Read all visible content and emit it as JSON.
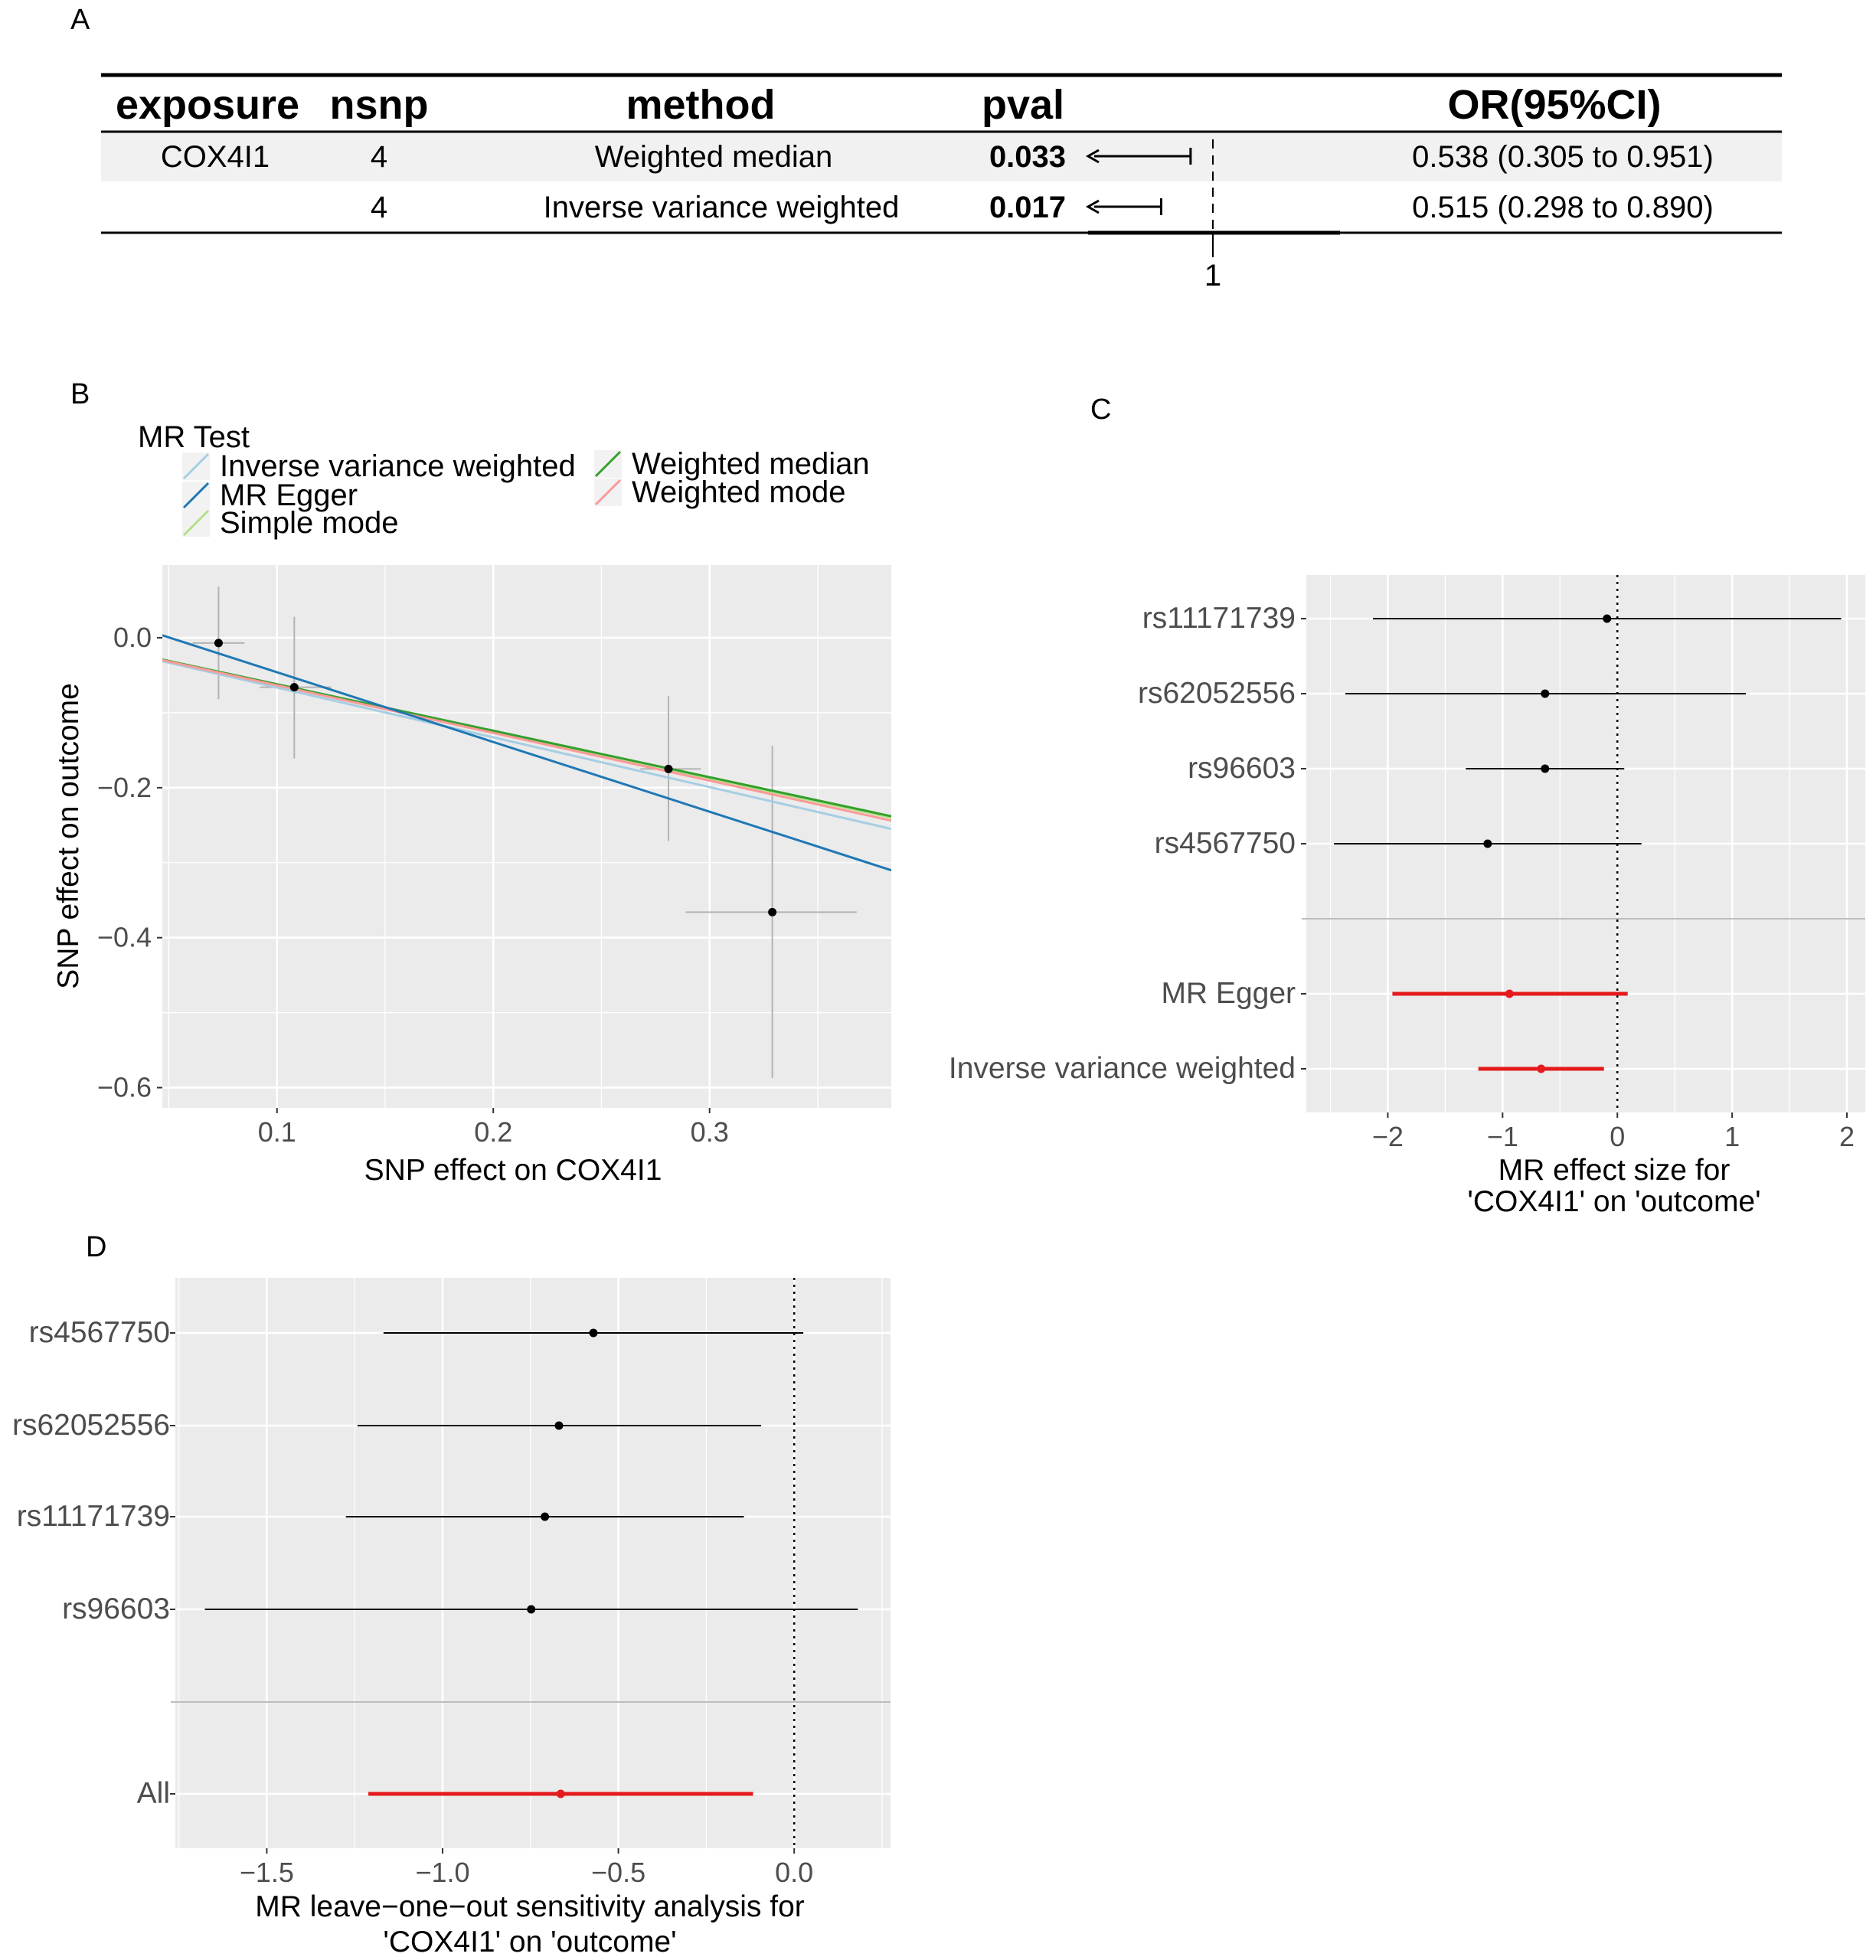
{
  "panels": {
    "a": "A",
    "b": "B",
    "c": "C",
    "d": "D"
  },
  "colors": {
    "panel_bg": "#ebebeb",
    "grid": "#ffffff",
    "point": "#000000",
    "summary": "#e41a1c",
    "errorbar_scatter": "#b3b3b3",
    "table_band": "#f0f1f0"
  },
  "chart_data": [
    {
      "type": "table",
      "panel": "A",
      "columns": [
        "exposure",
        "nsnp",
        "method",
        "pval",
        "OR(95%CI)"
      ],
      "rows": [
        {
          "exposure": "COX4I1",
          "nsnp": "4",
          "method": "Weighted median",
          "pval": "0.033",
          "or_ci": "0.538 (0.305 to 0.951)",
          "or": 0.538,
          "lo": 0.305,
          "hi": 0.951
        },
        {
          "exposure": "",
          "nsnp": "4",
          "method": "Inverse variance weighted",
          "pval": "0.017",
          "or_ci": "0.515 (0.298 to 0.890)",
          "or": 0.515,
          "lo": 0.298,
          "hi": 0.89
        }
      ],
      "reference_line": 1,
      "reference_label": "1"
    },
    {
      "type": "scatter",
      "panel": "B",
      "xlabel": "SNP effect on COX4I1",
      "ylabel": "SNP effect on outcome",
      "xlim": [
        0.047,
        0.384
      ],
      "ylim": [
        -0.627,
        0.097
      ],
      "xticks": [
        0.1,
        0.2,
        0.3
      ],
      "xtick_labels": [
        "0.1",
        "0.2",
        "0.3"
      ],
      "yticks": [
        0.0,
        -0.2,
        -0.4,
        -0.6
      ],
      "ytick_labels": [
        "0.0",
        "−0.2",
        "−0.4",
        "−0.6"
      ],
      "grid": true,
      "legend": {
        "title": "MR Test",
        "placement": "top",
        "entries": [
          {
            "name": "Inverse variance weighted",
            "color": "#a6cee3"
          },
          {
            "name": "MR Egger",
            "color": "#1f78b4"
          },
          {
            "name": "Simple mode",
            "color": "#b2df8a"
          },
          {
            "name": "Weighted median",
            "color": "#33a02c"
          },
          {
            "name": "Weighted mode",
            "color": "#fb9a99"
          }
        ]
      },
      "points": [
        {
          "x": 0.073,
          "y": -0.007,
          "xlo": 0.061,
          "xhi": 0.085,
          "ylo": -0.082,
          "yhi": 0.068
        },
        {
          "x": 0.108,
          "y": -0.066,
          "xlo": 0.092,
          "xhi": 0.125,
          "ylo": -0.161,
          "yhi": 0.028
        },
        {
          "x": 0.281,
          "y": -0.175,
          "xlo": 0.268,
          "xhi": 0.296,
          "ylo": -0.271,
          "yhi": -0.078
        },
        {
          "x": 0.329,
          "y": -0.366,
          "xlo": 0.289,
          "xhi": 0.368,
          "ylo": -0.587,
          "yhi": -0.144
        }
      ],
      "lines": [
        {
          "name": "Inverse variance weighted",
          "intercept": 0,
          "slope": -0.664,
          "color": "#a6cee3"
        },
        {
          "name": "Simple mode",
          "intercept": 0,
          "slope": -0.625,
          "color": "#b2df8a"
        },
        {
          "name": "Weighted median",
          "intercept": 0,
          "slope": -0.62,
          "color": "#33a02c"
        },
        {
          "name": "Weighted mode",
          "intercept": 0,
          "slope": -0.635,
          "color": "#fb9a99"
        },
        {
          "name": "MR Egger",
          "intercept": 0.047,
          "slope": -0.93,
          "color": "#1f78b4"
        }
      ]
    },
    {
      "type": "forest",
      "panel": "C",
      "xlabel": [
        "MR effect size for",
        "'COX4I1' on 'outcome'"
      ],
      "xlim": [
        -2.71,
        2.16
      ],
      "xticks": [
        -2,
        -1,
        0,
        1,
        2
      ],
      "xtick_labels": [
        "−2",
        "−1",
        "0",
        "1",
        "2"
      ],
      "reference_line": 0,
      "rows": [
        {
          "label": "rs11171739",
          "est": -0.09,
          "lo": -2.13,
          "hi": 1.95,
          "summary": false
        },
        {
          "label": "rs62052556",
          "est": -0.63,
          "lo": -2.37,
          "hi": 1.12,
          "summary": false
        },
        {
          "label": "rs96603",
          "est": -0.63,
          "lo": -1.32,
          "hi": 0.06,
          "summary": false
        },
        {
          "label": "rs4567750",
          "est": -1.13,
          "lo": -2.47,
          "hi": 0.21,
          "summary": false
        },
        {
          "label": "MR Egger",
          "est": -0.94,
          "lo": -1.96,
          "hi": 0.09,
          "summary": true
        },
        {
          "label": "Inverse variance weighted",
          "est": -0.664,
          "lo": -1.211,
          "hi": -0.117,
          "summary": true
        }
      ]
    },
    {
      "type": "forest",
      "panel": "D",
      "xlabel": [
        "MR leave−one−out sensitivity analysis for",
        "'COX4I1' on 'outcome'"
      ],
      "xlim": [
        -1.76,
        0.274
      ],
      "xticks": [
        -1.5,
        -1.0,
        -0.5,
        0.0
      ],
      "xtick_labels": [
        "−1.5",
        "−1.0",
        "−0.5",
        "0.0"
      ],
      "reference_line": 0,
      "rows": [
        {
          "label": "rs4567750",
          "est": -0.571,
          "lo": -1.168,
          "hi": 0.026,
          "summary": false
        },
        {
          "label": "rs62052556",
          "est": -0.669,
          "lo": -1.242,
          "hi": -0.094,
          "summary": false
        },
        {
          "label": "rs11171739",
          "est": -0.709,
          "lo": -1.275,
          "hi": -0.143,
          "summary": false
        },
        {
          "label": "rs96603",
          "est": -0.748,
          "lo": -1.676,
          "hi": 0.181,
          "summary": false
        },
        {
          "label": "All",
          "est": -0.664,
          "lo": -1.211,
          "hi": -0.117,
          "summary": true
        }
      ]
    }
  ]
}
